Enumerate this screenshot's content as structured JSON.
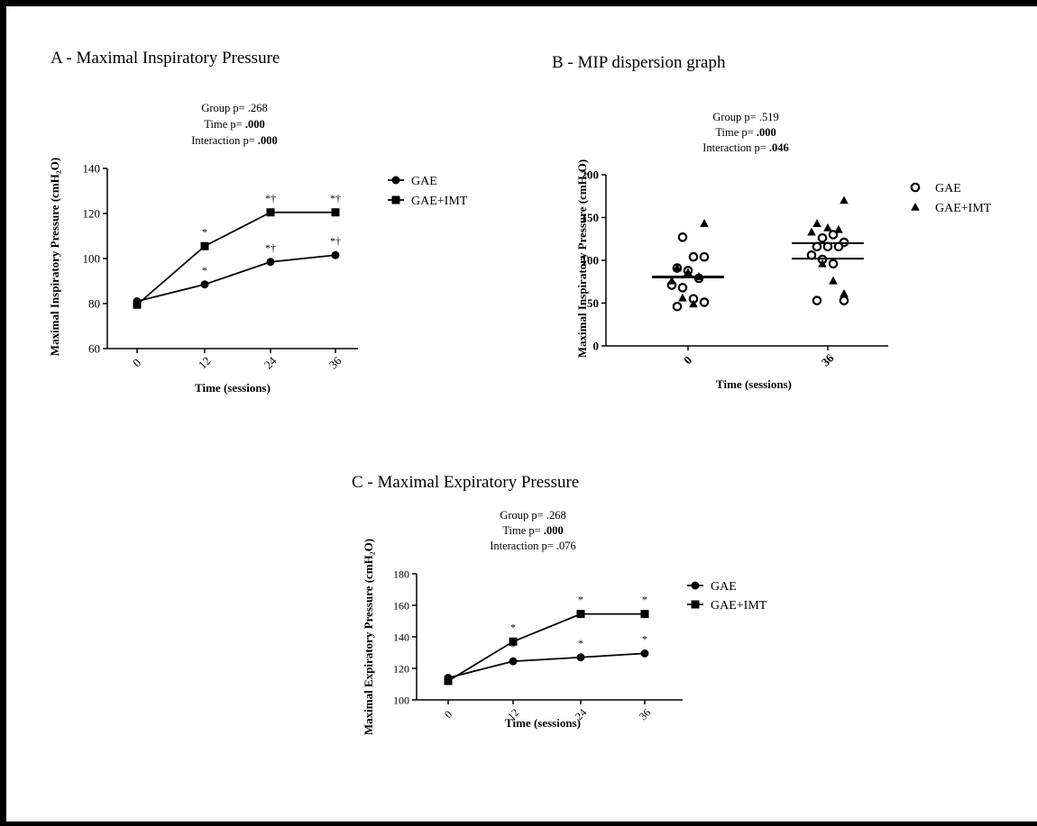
{
  "chart_data": [
    {
      "id": "A",
      "type": "line",
      "title": "A - Maximal Inspiratory Pressure",
      "stats": [
        {
          "label": "Group p= ",
          "value": ".268",
          "bold": false
        },
        {
          "label": "Time p= ",
          "value": ".000",
          "bold": true
        },
        {
          "label": "Interaction p= ",
          "value": ".000",
          "bold": true
        }
      ],
      "xlabel": "Time (sessions)",
      "ylabel": "Maximal Inspiratory Pressure (cmH₂O)",
      "ylim": [
        60,
        140
      ],
      "yticks": [
        60,
        80,
        100,
        120,
        140
      ],
      "categories": [
        "0",
        "12",
        "24",
        "36"
      ],
      "series": [
        {
          "name": "GAE",
          "marker": "circle",
          "values": [
            81,
            88.5,
            98.5,
            101.5
          ]
        },
        {
          "name": "GAE+IMT",
          "marker": "square",
          "values": [
            79.5,
            105.5,
            120.5,
            120.5
          ]
        }
      ],
      "annotations": [
        {
          "category": "12",
          "value": 88.5,
          "text": "*"
        },
        {
          "category": "24",
          "value": 98.5,
          "text": "*†"
        },
        {
          "category": "36",
          "value": 101.5,
          "text": "*†"
        },
        {
          "category": "12",
          "value": 105.5,
          "text": "*"
        },
        {
          "category": "24",
          "value": 120.5,
          "text": "*†"
        },
        {
          "category": "36",
          "value": 120.5,
          "text": "*†"
        }
      ],
      "legend_position": "right"
    },
    {
      "id": "B",
      "type": "scatter",
      "title": "B - MIP dispersion graph",
      "stats": [
        {
          "label": "Group p= ",
          "value": ".519",
          "bold": false
        },
        {
          "label": "Time p= ",
          "value": ".000",
          "bold": true
        },
        {
          "label": "Interaction p= ",
          "value": ".046",
          "bold": true
        }
      ],
      "xlabel": "Time (sessions)",
      "ylabel": "Maximal Inspiratory Pressure (cmH₂O)",
      "ylim": [
        0,
        200
      ],
      "yticks": [
        0,
        50,
        100,
        150,
        200
      ],
      "categories": [
        "0",
        "36"
      ],
      "series": [
        {
          "name": "GAE",
          "marker": "open-circle",
          "points": [
            {
              "x": "0",
              "y": 127
            },
            {
              "x": "0",
              "y": 104
            },
            {
              "x": "0",
              "y": 104
            },
            {
              "x": "0",
              "y": 91
            },
            {
              "x": "0",
              "y": 88
            },
            {
              "x": "0",
              "y": 79
            },
            {
              "x": "0",
              "y": 71
            },
            {
              "x": "0",
              "y": 68
            },
            {
              "x": "0",
              "y": 55
            },
            {
              "x": "0",
              "y": 51
            },
            {
              "x": "0",
              "y": 46
            },
            {
              "x": "36",
              "y": 126
            },
            {
              "x": "36",
              "y": 130
            },
            {
              "x": "36",
              "y": 121
            },
            {
              "x": "36",
              "y": 116
            },
            {
              "x": "36",
              "y": 116
            },
            {
              "x": "36",
              "y": 116
            },
            {
              "x": "36",
              "y": 106
            },
            {
              "x": "36",
              "y": 101
            },
            {
              "x": "36",
              "y": 96
            },
            {
              "x": "36",
              "y": 53
            },
            {
              "x": "36",
              "y": 53
            }
          ]
        },
        {
          "name": "GAE+IMT",
          "marker": "triangle",
          "points": [
            {
              "x": "0",
              "y": 143
            },
            {
              "x": "0",
              "y": 91
            },
            {
              "x": "0",
              "y": 86
            },
            {
              "x": "0",
              "y": 81
            },
            {
              "x": "0",
              "y": 76
            },
            {
              "x": "0",
              "y": 56
            },
            {
              "x": "0",
              "y": 49
            },
            {
              "x": "36",
              "y": 170
            },
            {
              "x": "36",
              "y": 143
            },
            {
              "x": "36",
              "y": 138
            },
            {
              "x": "36",
              "y": 136
            },
            {
              "x": "36",
              "y": 133
            },
            {
              "x": "36",
              "y": 96
            },
            {
              "x": "36",
              "y": 76
            },
            {
              "x": "36",
              "y": 61
            }
          ]
        }
      ],
      "mean_lines": [
        {
          "x": "0",
          "y": 81
        },
        {
          "x": "0",
          "y": 80
        },
        {
          "x": "36",
          "y": 120
        },
        {
          "x": "36",
          "y": 102
        }
      ],
      "legend_position": "right"
    },
    {
      "id": "C",
      "type": "line",
      "title": "C - Maximal Expiratory Pressure",
      "stats": [
        {
          "label": "Group p= ",
          "value": ".268",
          "bold": false
        },
        {
          "label": "Time p= ",
          "value": ".000",
          "bold": true
        },
        {
          "label": "Interaction p= ",
          "value": ".076",
          "bold": false
        }
      ],
      "xlabel": "Time (sessions)",
      "ylabel": "Maximal Expiratory Pressure (cmH₂O)",
      "ylim": [
        100,
        180
      ],
      "yticks": [
        100,
        120,
        140,
        160,
        180
      ],
      "categories": [
        "0",
        "12",
        "24",
        "36"
      ],
      "series": [
        {
          "name": "GAE",
          "marker": "circle",
          "values": [
            114,
            124.5,
            127,
            129.5
          ]
        },
        {
          "name": "GAE+IMT",
          "marker": "square",
          "values": [
            112,
            137,
            154.5,
            154.5
          ]
        }
      ],
      "annotations": [
        {
          "category": "12",
          "value": 124.5,
          "text": "*"
        },
        {
          "category": "24",
          "value": 127,
          "text": "*"
        },
        {
          "category": "36",
          "value": 129.5,
          "text": "*"
        },
        {
          "category": "12",
          "value": 137,
          "text": "*"
        },
        {
          "category": "24",
          "value": 154.5,
          "text": "*"
        },
        {
          "category": "36",
          "value": 154.5,
          "text": "*"
        }
      ],
      "legend_position": "right"
    }
  ]
}
